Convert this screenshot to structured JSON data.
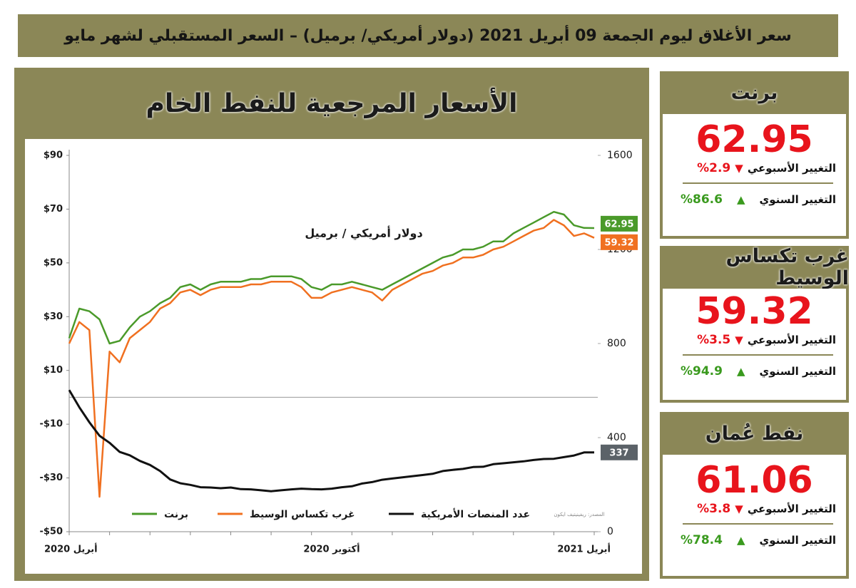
{
  "header": {
    "title": "سعر الأغلاق ليوم الجمعة 09 أبريل 2021 (دولار أمريكي/ برميل) – السعر المستقبلي لشهر مايو"
  },
  "chart_data": {
    "type": "line",
    "title": "الأسعار المرجعية للنفط الخام",
    "annotation": "دولار أمريكي / برميل",
    "source": "المصدر: ريفينيتيف ايكون",
    "categories": [
      "أبريل 2020",
      null,
      null,
      null,
      null,
      null,
      null,
      null,
      null,
      null,
      null,
      null,
      null,
      null,
      null,
      null,
      null,
      null,
      null,
      null,
      null,
      null,
      null,
      null,
      null,
      null,
      "أكتوبر 2020",
      null,
      null,
      null,
      null,
      null,
      null,
      null,
      null,
      null,
      null,
      null,
      null,
      null,
      null,
      null,
      null,
      null,
      null,
      null,
      null,
      null,
      null,
      null,
      null,
      null,
      "أبريل 2021"
    ],
    "ylim": [
      -50,
      90
    ],
    "yticks": [
      {
        "value": 90,
        "label": "$90"
      },
      {
        "value": 70,
        "label": "$70"
      },
      {
        "value": 50,
        "label": "$50"
      },
      {
        "value": 30,
        "label": "$30"
      },
      {
        "value": 10,
        "label": "$10"
      },
      {
        "value": -10,
        "label": "-$10"
      },
      {
        "value": -30,
        "label": "-$30"
      },
      {
        "value": -50,
        "label": "-$50"
      }
    ],
    "y2lim": [
      0,
      1600
    ],
    "y2ticks": [
      1600,
      1200,
      800,
      400,
      0
    ],
    "series": [
      {
        "name": "برنت",
        "color": "#4a9a2a",
        "values": [
          22,
          33,
          32,
          29,
          20,
          21,
          26,
          30,
          32,
          35,
          37,
          41,
          42,
          40,
          42,
          43,
          43,
          43,
          44,
          44,
          45,
          45,
          45,
          44,
          41,
          40,
          42,
          42,
          43,
          42,
          41,
          40,
          42,
          44,
          46,
          48,
          50,
          52,
          53,
          55,
          55,
          56,
          58,
          58,
          61,
          63,
          65,
          67,
          69,
          68,
          64,
          63,
          62.95
        ]
      },
      {
        "name": "غرب تكساس الوسيط",
        "color": "#f07020",
        "values": [
          20,
          28,
          25,
          -37,
          17,
          13,
          22,
          25,
          28,
          33,
          35,
          39,
          40,
          38,
          40,
          41,
          41,
          41,
          42,
          42,
          43,
          43,
          43,
          41,
          37,
          37,
          39,
          40,
          41,
          40,
          39,
          36,
          40,
          42,
          44,
          46,
          47,
          49,
          50,
          52,
          52,
          53,
          55,
          56,
          58,
          60,
          62,
          63,
          66,
          64,
          60,
          61,
          59.32
        ]
      },
      {
        "name": "عدد المنصات الأمريكية",
        "color": "#111111",
        "axis": "y2",
        "values": [
          602,
          529,
          465,
          408,
          378,
          339,
          325,
          301,
          284,
          258,
          222,
          206,
          199,
          189,
          188,
          185,
          188,
          181,
          180,
          176,
          172,
          176,
          180,
          183,
          181,
          180,
          183,
          189,
          193,
          205,
          211,
          221,
          226,
          231,
          236,
          241,
          246,
          258,
          263,
          267,
          275,
          276,
          287,
          291,
          295,
          299,
          305,
          309,
          310,
          317,
          324,
          337,
          337
        ]
      }
    ]
  },
  "panels": [
    {
      "name": "برنت",
      "price": "62.95",
      "weekly_label": "التغيير الأسبوعي",
      "weekly_change": "%2.9",
      "annual_label": "التغيير السنوي",
      "annual_change": "%86.6"
    },
    {
      "name": "غرب تكساس الوسيط",
      "price": "59.32",
      "weekly_label": "التغيير الأسبوعي",
      "weekly_change": "%3.5",
      "annual_label": "التغيير السنوي",
      "annual_change": "%94.9"
    },
    {
      "name": "نفط عُمان",
      "price": "61.06",
      "weekly_label": "التغيير الأسبوعي",
      "weekly_change": "%3.8",
      "annual_label": "التغيير السنوي",
      "annual_change": "%78.4"
    }
  ]
}
